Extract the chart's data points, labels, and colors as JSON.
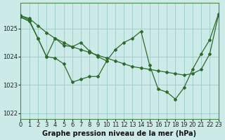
{
  "background_color": "#cceae7",
  "plot_bg_color": "#cceae7",
  "line_color": "#2d6b2d",
  "marker_color": "#2d6b2d",
  "grid_color": "#99ccc8",
  "xlabel": "Graphe pression niveau de la mer (hPa)",
  "xlim": [
    0,
    23
  ],
  "ylim": [
    1021.8,
    1025.9
  ],
  "yticks": [
    1022,
    1023,
    1024,
    1025
  ],
  "xticks": [
    0,
    1,
    2,
    3,
    4,
    5,
    6,
    7,
    8,
    9,
    10,
    11,
    12,
    13,
    14,
    15,
    16,
    17,
    18,
    19,
    20,
    21,
    22,
    23
  ],
  "xlabel_fontsize": 7,
  "tick_fontsize": 6,
  "line1_x": [
    0,
    1,
    2,
    3,
    4,
    5,
    6,
    7,
    8,
    9,
    10,
    11,
    12,
    13,
    14,
    15,
    16,
    17,
    18,
    19,
    20,
    21,
    22,
    23
  ],
  "line1_y": [
    1025.45,
    1025.35,
    1025.1,
    1024.85,
    1024.65,
    1024.5,
    1024.35,
    1024.25,
    1024.15,
    1024.05,
    1023.95,
    1023.85,
    1023.75,
    1023.65,
    1023.6,
    1023.55,
    1023.5,
    1023.45,
    1023.4,
    1023.35,
    1023.4,
    1023.55,
    1024.1,
    1025.45
  ],
  "line2_x": [
    0,
    1,
    2,
    3,
    4,
    5,
    6,
    7,
    8,
    9,
    10,
    11,
    12,
    13,
    14,
    15,
    16,
    17,
    18,
    19,
    20,
    21,
    22,
    23
  ],
  "line2_y": [
    1025.45,
    1025.3,
    1024.65,
    1024.0,
    1024.65,
    1024.4,
    1024.35,
    1024.5,
    1024.2,
    1024.0,
    1023.85,
    1024.25,
    1024.5,
    1024.65,
    1024.9,
    1023.7,
    1022.85,
    1022.75,
    1022.5,
    1022.9,
    1023.55,
    1024.1,
    1024.6,
    1025.5
  ],
  "line3_x": [
    0,
    1,
    2,
    3,
    4,
    5,
    6,
    7,
    8,
    9,
    10
  ],
  "line3_y": [
    1025.4,
    1025.25,
    1024.65,
    1024.0,
    1023.95,
    1023.75,
    1023.1,
    1023.2,
    1023.3,
    1023.3,
    1023.85
  ],
  "line4_x": [
    0,
    1
  ],
  "line4_y": [
    1025.4,
    1025.25
  ]
}
